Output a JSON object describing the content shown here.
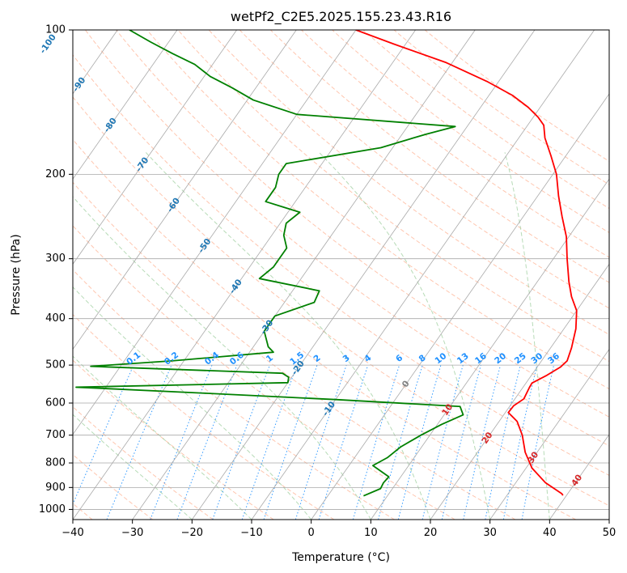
{
  "chart_data": {
    "type": "line",
    "subtype": "skew-T log-P diagram",
    "title": "wetPf2_C2E5.2025.155.23.43.R16",
    "xlabel": "Temperature (°C)",
    "ylabel": "Pressure (hPa)",
    "xlim": [
      -40,
      50
    ],
    "ylim": [
      1050,
      100
    ],
    "yscale": "log",
    "grid": true,
    "x_ticks": [
      "−40",
      "−30",
      "−20",
      "−10",
      "0",
      "10",
      "20",
      "30",
      "40",
      "50"
    ],
    "x_tick_values": [
      -40,
      -30,
      -20,
      -10,
      0,
      10,
      20,
      30,
      40,
      50
    ],
    "y_ticks": [
      "100",
      "200",
      "300",
      "400",
      "500",
      "600",
      "700",
      "800",
      "900",
      "1000"
    ],
    "y_tick_values": [
      100,
      200,
      300,
      400,
      500,
      600,
      700,
      800,
      900,
      1000
    ],
    "isotherm_values": [
      -100,
      -90,
      -80,
      -70,
      -60,
      -50,
      -40,
      -30,
      -20,
      -10,
      0,
      10,
      20,
      30,
      40
    ],
    "isotherm_labels": [
      {
        "text": "-100",
        "value": -100,
        "p": 107
      },
      {
        "text": "-90",
        "value": -90,
        "p": 130
      },
      {
        "text": "-80",
        "value": -80,
        "p": 158
      },
      {
        "text": "-70",
        "value": -70,
        "p": 191
      },
      {
        "text": "-60",
        "value": -60,
        "p": 232
      },
      {
        "text": "-50",
        "value": -50,
        "p": 282
      },
      {
        "text": "-40",
        "value": -40,
        "p": 343
      },
      {
        "text": "-30",
        "value": -30,
        "p": 417
      },
      {
        "text": "-20",
        "value": -20,
        "p": 507
      },
      {
        "text": "-10",
        "value": -10,
        "p": 617
      },
      {
        "text": "0",
        "value": 0,
        "p": 548
      },
      {
        "text": "10",
        "value": 10,
        "p": 620
      },
      {
        "text": "20",
        "value": 20,
        "p": 710
      },
      {
        "text": "30",
        "value": 30,
        "p": 780
      },
      {
        "text": "40",
        "value": 40,
        "p": 870
      }
    ],
    "mixing_ratio_labels": [
      "0.1",
      "0.2",
      "0.4",
      "0.6",
      "1",
      "1.5",
      "2",
      "3",
      "4",
      "6",
      "8",
      "10",
      "13",
      "16",
      "20",
      "25",
      "30",
      "36"
    ],
    "mixing_ratio_values": [
      0.1,
      0.2,
      0.4,
      0.6,
      1,
      1.5,
      2,
      3,
      4,
      6,
      8,
      10,
      13,
      16,
      20,
      25,
      30,
      36
    ],
    "mixing_ratio_label_pressure": 500,
    "dry_adiabat_thetas": [
      -40,
      -30,
      -20,
      -10,
      0,
      10,
      20,
      30,
      40,
      50,
      60,
      70,
      80,
      90,
      100,
      110,
      120,
      130,
      140,
      150,
      160,
      170,
      180
    ],
    "moist_adiabat_start_temps": [
      -20,
      -10,
      0,
      10,
      20,
      30,
      40
    ],
    "colors": {
      "temperature": "#ff0000",
      "dewpoint": "#008000",
      "isotherm_label": "#1f77b4",
      "mixing_ratio": "#1e90ff",
      "dry_adiabat": "#ffa07a",
      "moist_adiabat": "#98cc98",
      "warm_isotherm_label": "#d62728",
      "grid": "#a9a9a9"
    },
    "series": [
      {
        "role": "temperature",
        "points": [
          [
            39.4,
            935
          ],
          [
            39,
            927
          ],
          [
            35,
            880
          ],
          [
            31,
            820
          ],
          [
            28,
            760
          ],
          [
            25.5,
            700
          ],
          [
            23,
            655
          ],
          [
            20.5,
            628
          ],
          [
            20.6,
            608
          ],
          [
            21.5,
            588
          ],
          [
            21.1,
            557
          ],
          [
            21,
            545
          ],
          [
            22.6,
            525
          ],
          [
            23.9,
            505
          ],
          [
            24.3,
            490
          ],
          [
            23.5,
            460
          ],
          [
            22,
            420
          ],
          [
            20,
            385
          ],
          [
            17.5,
            360
          ],
          [
            15.3,
            335
          ],
          [
            12.3,
            300
          ],
          [
            9.6,
            270
          ],
          [
            6.5,
            245
          ],
          [
            3.5,
            222
          ],
          [
            0.6,
            200
          ],
          [
            -2.5,
            183
          ],
          [
            -5.6,
            168
          ],
          [
            -7.3,
            158
          ],
          [
            -9.2,
            152
          ],
          [
            -12,
            145
          ],
          [
            -16,
            137
          ],
          [
            -22,
            128
          ],
          [
            -31,
            117
          ],
          [
            -42,
            107
          ],
          [
            -50,
            100
          ]
        ]
      },
      {
        "role": "dewpoint",
        "points": [
          [
            6,
            937
          ],
          [
            8,
            905
          ],
          [
            7.8,
            880
          ],
          [
            8,
            855
          ],
          [
            4,
            810
          ],
          [
            5.5,
            780
          ],
          [
            6.5,
            740
          ],
          [
            8.5,
            700
          ],
          [
            10.7,
            665
          ],
          [
            13.2,
            635
          ],
          [
            11.7,
            610
          ],
          [
            -10,
            590
          ],
          [
            -33,
            572
          ],
          [
            -55,
            556
          ],
          [
            -20,
            544
          ],
          [
            -20.5,
            530
          ],
          [
            -22,
            520
          ],
          [
            -55,
            503
          ],
          [
            -42,
            490
          ],
          [
            -26,
            470
          ],
          [
            -27.5,
            458
          ],
          [
            -30,
            425
          ],
          [
            -30,
            395
          ],
          [
            -25,
            370
          ],
          [
            -25.5,
            350
          ],
          [
            -37,
            330
          ],
          [
            -36,
            312
          ],
          [
            -36,
            300
          ],
          [
            -36,
            285
          ],
          [
            -38,
            268
          ],
          [
            -39,
            253
          ],
          [
            -38,
            240
          ],
          [
            -45,
            228
          ],
          [
            -45,
            213
          ],
          [
            -46,
            200
          ],
          [
            -46,
            190
          ],
          [
            -32,
            176
          ],
          [
            -26,
            165
          ],
          [
            -22,
            159
          ],
          [
            -50,
            150
          ],
          [
            -59,
            140
          ],
          [
            -64,
            132
          ],
          [
            -69,
            125
          ],
          [
            -73,
            118
          ],
          [
            -78,
            112
          ],
          [
            -83,
            106
          ],
          [
            -88,
            100
          ]
        ]
      }
    ]
  }
}
